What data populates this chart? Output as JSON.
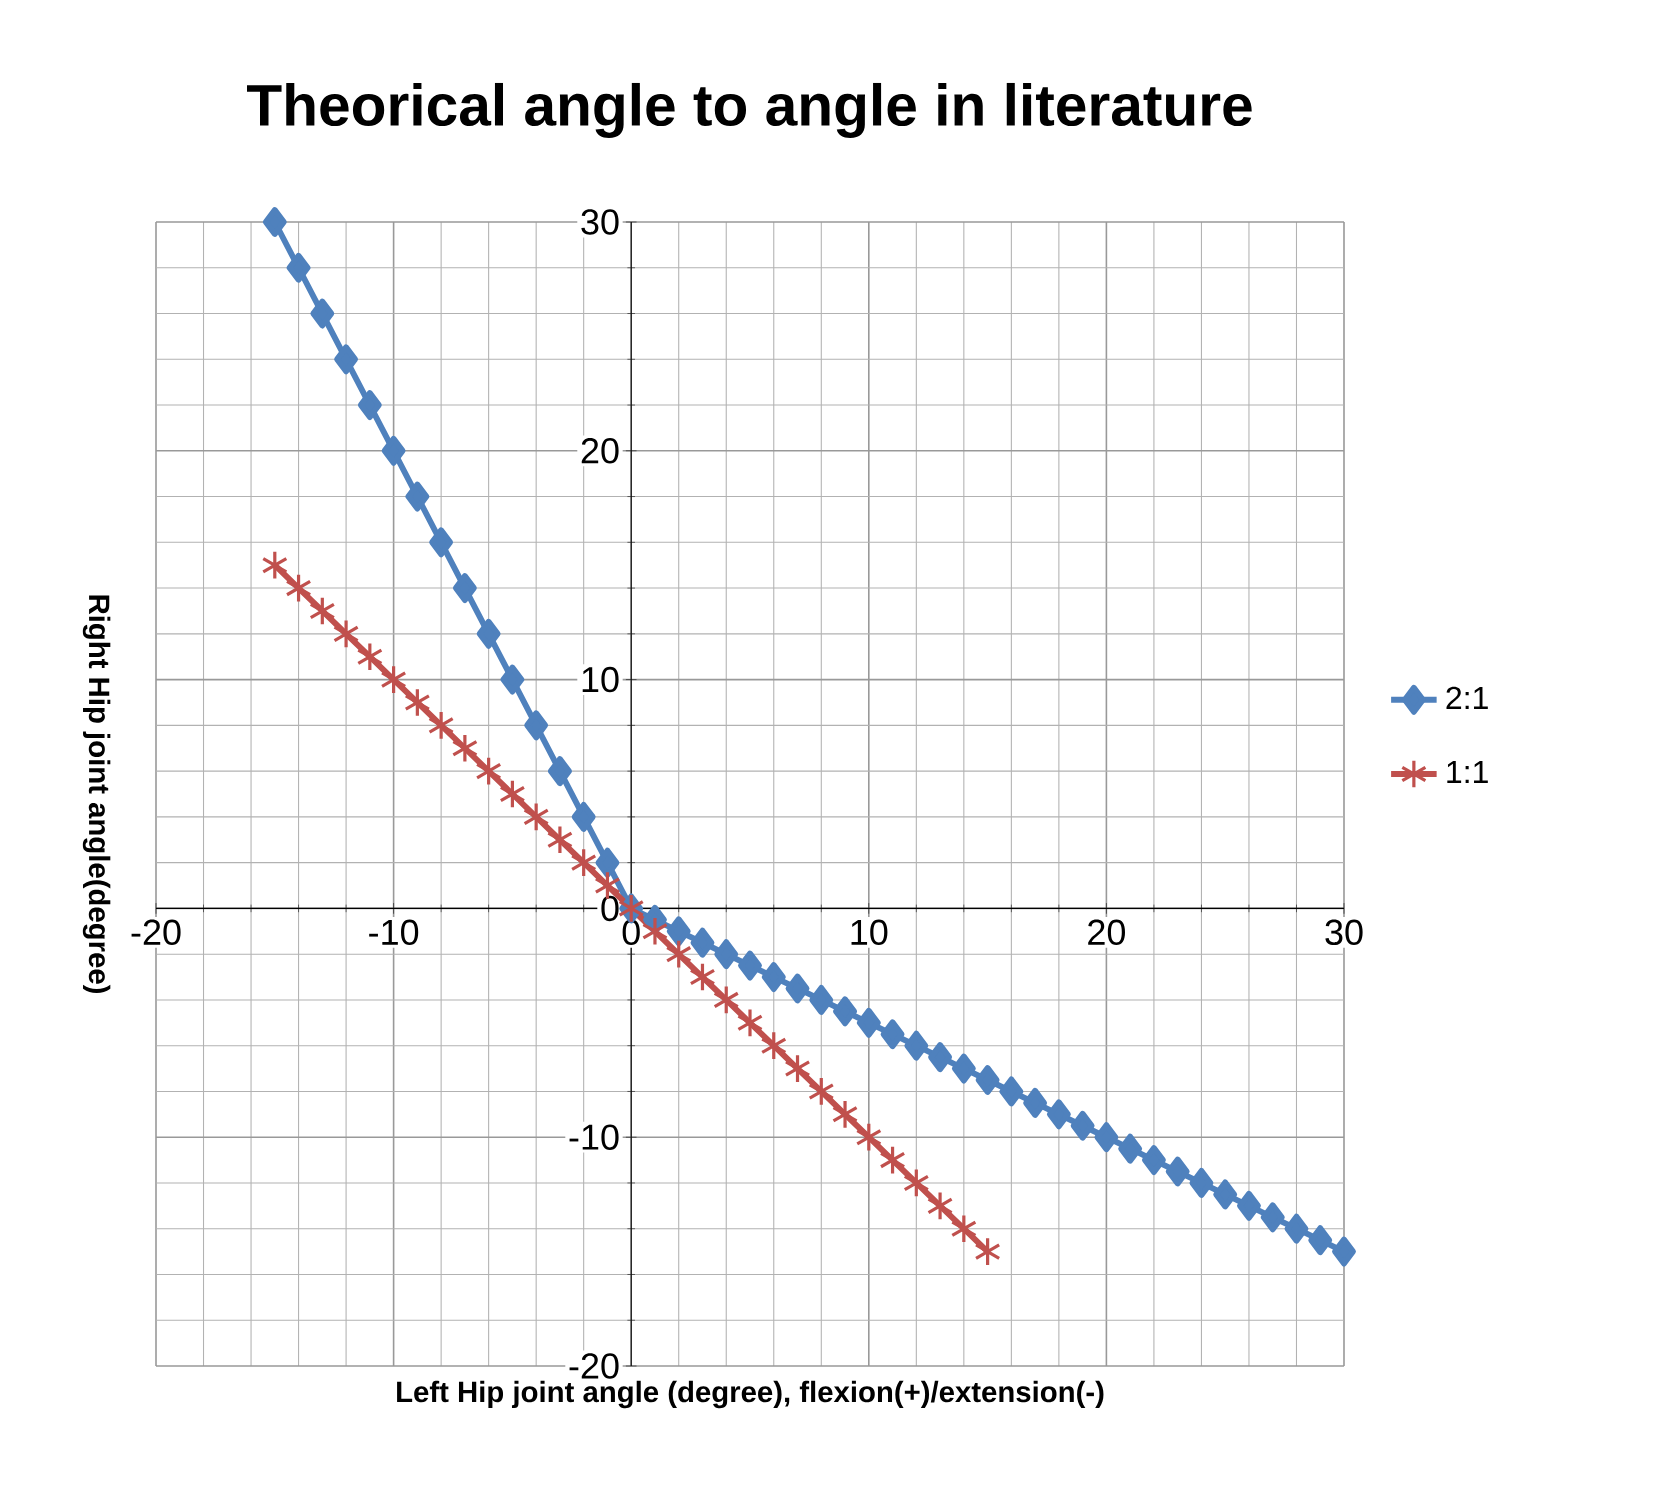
{
  "chart_data": {
    "type": "line",
    "title": "Theorical angle to angle in literature",
    "xlabel": "Left Hip joint angle (degree), flexion(+)/extension(-)",
    "ylabel": "Right Hip joint angle(degree)",
    "xlim": [
      -20,
      30
    ],
    "ylim": [
      -20,
      30
    ],
    "xticks": [
      -20,
      -10,
      0,
      10,
      20,
      30
    ],
    "yticks": [
      -20,
      -10,
      0,
      10,
      20,
      30
    ],
    "grid": true,
    "legend": "right",
    "series": [
      {
        "name": "2:1",
        "color": "#4f81bd",
        "marker": "diamond",
        "x": [
          -15,
          -14,
          -13,
          -12,
          -11,
          -10,
          -9,
          -8,
          -7,
          -6,
          -5,
          -4,
          -3,
          -2,
          -1,
          0,
          1,
          2,
          3,
          4,
          5,
          6,
          7,
          8,
          9,
          10,
          11,
          12,
          13,
          14,
          15,
          16,
          17,
          18,
          19,
          20,
          21,
          22,
          23,
          24,
          25,
          26,
          27,
          28,
          29,
          30
        ],
        "values": [
          30,
          28,
          26,
          24,
          22,
          20,
          18,
          16,
          14,
          12,
          10,
          8,
          6,
          4,
          2,
          0,
          -0.5,
          -1,
          -1.5,
          -2,
          -2.5,
          -3,
          -3.5,
          -4,
          -4.5,
          -5,
          -5.5,
          -6,
          -6.5,
          -7,
          -7.5,
          -8,
          -8.5,
          -9,
          -9.5,
          -10,
          -10.5,
          -11,
          -11.5,
          -12,
          -12.5,
          -13,
          -13.5,
          -14,
          -14.5,
          -15
        ]
      },
      {
        "name": "1:1",
        "color": "#c0504d",
        "marker": "cross",
        "x": [
          -15,
          -14,
          -13,
          -12,
          -11,
          -10,
          -9,
          -8,
          -7,
          -6,
          -5,
          -4,
          -3,
          -2,
          -1,
          0,
          1,
          2,
          3,
          4,
          5,
          6,
          7,
          8,
          9,
          10,
          11,
          12,
          13,
          14,
          15
        ],
        "values": [
          15,
          14,
          13,
          12,
          11,
          10,
          9,
          8,
          7,
          6,
          5,
          4,
          3,
          2,
          1,
          0,
          -1,
          -2,
          -3,
          -4,
          -5,
          -6,
          -7,
          -8,
          -9,
          -10,
          -11,
          -12,
          -13,
          -14,
          -15
        ]
      }
    ]
  }
}
